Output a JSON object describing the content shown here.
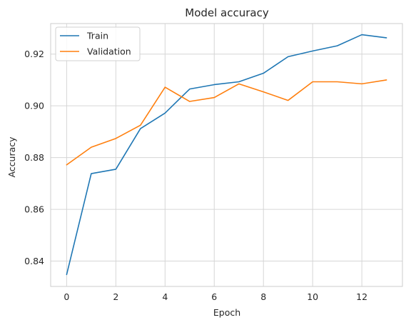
{
  "chart_data": {
    "type": "line",
    "title": "Model accuracy",
    "xlabel": "Epoch",
    "ylabel": "Accuracy",
    "xlim": [
      -0.65,
      13.65
    ],
    "ylim": [
      0.8302,
      0.9318
    ],
    "xticks": [
      0,
      2,
      4,
      6,
      8,
      10,
      12
    ],
    "xtick_labels": [
      "0",
      "2",
      "4",
      "6",
      "8",
      "10",
      "12"
    ],
    "yticks": [
      0.84,
      0.86,
      0.88,
      0.9,
      0.92
    ],
    "ytick_labels": [
      "0.84",
      "0.86",
      "0.88",
      "0.90",
      "0.92"
    ],
    "grid": true,
    "legend_position": "top-left",
    "x": [
      0,
      1,
      2,
      3,
      4,
      5,
      6,
      7,
      8,
      9,
      10,
      11,
      12,
      13
    ],
    "series": [
      {
        "name": "Train",
        "color": "#1f77b4",
        "values": [
          0.8348,
          0.8738,
          0.8755,
          0.8912,
          0.8972,
          0.9065,
          0.9082,
          0.9093,
          0.9126,
          0.919,
          0.9212,
          0.9232,
          0.9275,
          0.9263
        ]
      },
      {
        "name": "Validation",
        "color": "#ff7f0e",
        "values": [
          0.8772,
          0.884,
          0.8874,
          0.8925,
          0.9072,
          0.9017,
          0.9032,
          0.9085,
          0.9054,
          0.9021,
          0.9093,
          0.9093,
          0.9085,
          0.91
        ]
      }
    ]
  }
}
